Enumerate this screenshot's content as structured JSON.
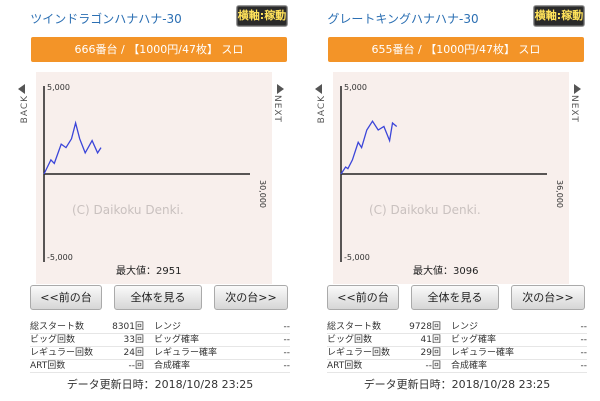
{
  "panels": [
    {
      "machine_name": "ツインドラゴンハナハナ-30",
      "status_badge": "横軸:稼動",
      "info_bar": "666番台 / 【1000円/47枚】 スロ",
      "chart": {
        "y_max_label": "5,000",
        "y_min_label": "-5,000",
        "x_max_label": "30,000",
        "watermark": "(C) Daikoku Denki.",
        "max_value_text": "最大値：2951",
        "back_label": "BACK",
        "next_label": "NEXT"
      },
      "nav": {
        "prev": "<<前の台",
        "all": "全体を見る",
        "next": "次の台>>"
      },
      "stats": [
        {
          "label": "総スタート数",
          "value": "8301回",
          "label2": "レンジ",
          "value2": "--"
        },
        {
          "label": "ビッグ回数",
          "value": "33回",
          "label2": "ビッグ確率",
          "value2": "--"
        },
        {
          "label": "レギュラー回数",
          "value": "24回",
          "label2": "レギュラー確率",
          "value2": "--"
        },
        {
          "label": "ART回数",
          "value": "--回",
          "label2": "合成確率",
          "value2": "--"
        }
      ],
      "update_time": "データ更新日時：2018/10/28 23:25"
    },
    {
      "machine_name": "グレートキングハナハナ-30",
      "status_badge": "横軸:稼動",
      "info_bar": "655番台 / 【1000円/47枚】 スロ",
      "chart": {
        "y_max_label": "5,000",
        "y_min_label": "-5,000",
        "x_max_label": "36,000",
        "watermark": "(C) Daikoku Denki.",
        "max_value_text": "最大値：3096",
        "back_label": "BACK",
        "next_label": "NEXT"
      },
      "nav": {
        "prev": "<<前の台",
        "all": "全体を見る",
        "next": "次の台>>"
      },
      "stats": [
        {
          "label": "総スタート数",
          "value": "9728回",
          "label2": "レンジ",
          "value2": "--"
        },
        {
          "label": "ビッグ回数",
          "value": "41回",
          "label2": "ビッグ確率",
          "value2": "--"
        },
        {
          "label": "レギュラー回数",
          "value": "29回",
          "label2": "レギュラー確率",
          "value2": "--"
        },
        {
          "label": "ART回数",
          "value": "--回",
          "label2": "合成確率",
          "value2": "--"
        }
      ],
      "update_time": "データ更新日時：2018/10/28 23:25"
    }
  ],
  "chart_data": [
    {
      "type": "line",
      "x_range": [
        0,
        30000
      ],
      "ylim": [
        -5000,
        5000
      ],
      "x": [
        0,
        1000,
        1500,
        2500,
        3200,
        4000,
        4600,
        5200,
        6000,
        7000,
        7800,
        8300
      ],
      "y": [
        0,
        800,
        600,
        1700,
        1500,
        2000,
        2900,
        2000,
        1200,
        1900,
        1200,
        1500
      ],
      "series_color": "#3b45d9"
    },
    {
      "type": "line",
      "x_range": [
        0,
        36000
      ],
      "ylim": [
        -5000,
        5000
      ],
      "x": [
        0,
        800,
        1200,
        2000,
        3000,
        3600,
        4500,
        5500,
        6500,
        7500,
        8500,
        9000,
        9728
      ],
      "y": [
        0,
        400,
        300,
        800,
        1800,
        1500,
        2500,
        3000,
        2500,
        2700,
        1900,
        2900,
        2700
      ],
      "series_color": "#3b45d9"
    }
  ],
  "colors": {
    "accent": "#f39428",
    "series": "#3b45d9",
    "link": "#2b6fb3"
  }
}
